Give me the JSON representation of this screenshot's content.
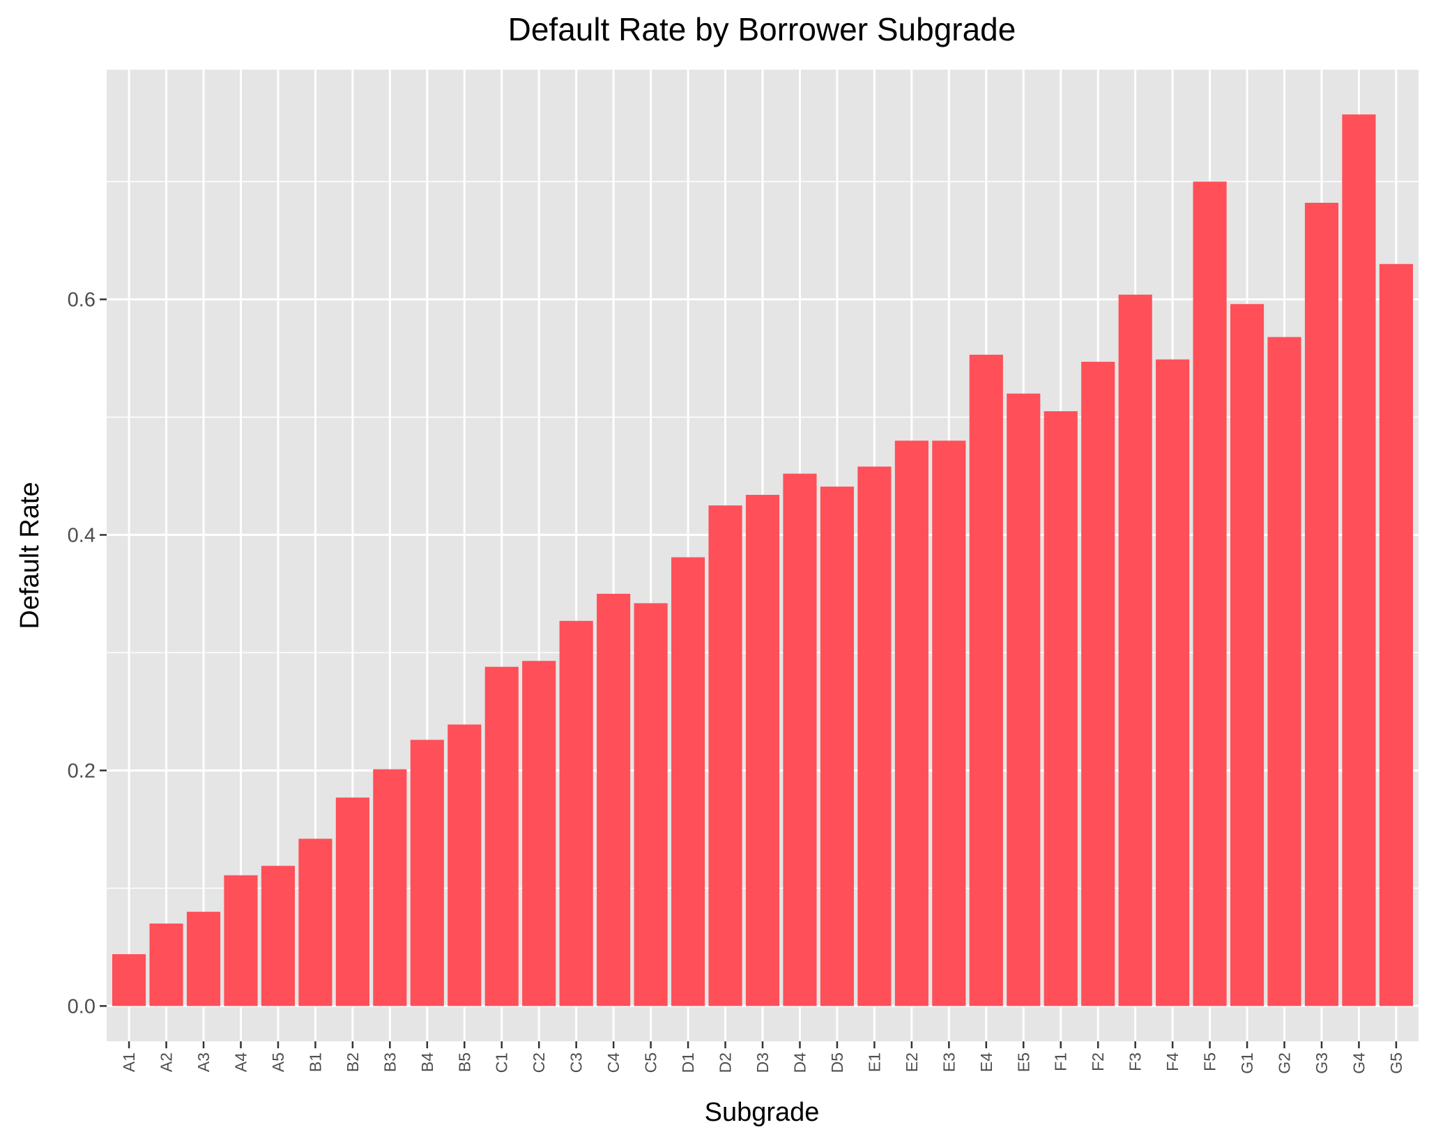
{
  "chart_data": {
    "type": "bar",
    "title": "Default Rate by Borrower Subgrade",
    "xlabel": "Subgrade",
    "ylabel": "Default Rate",
    "categories": [
      "A1",
      "A2",
      "A3",
      "A4",
      "A5",
      "B1",
      "B2",
      "B3",
      "B4",
      "B5",
      "C1",
      "C2",
      "C3",
      "C4",
      "C5",
      "D1",
      "D2",
      "D3",
      "D4",
      "D5",
      "E1",
      "E2",
      "E3",
      "E4",
      "E5",
      "F1",
      "F2",
      "F3",
      "F4",
      "F5",
      "G1",
      "G2",
      "G3",
      "G4",
      "G5"
    ],
    "values": [
      0.044,
      0.07,
      0.08,
      0.111,
      0.119,
      0.142,
      0.177,
      0.201,
      0.226,
      0.239,
      0.288,
      0.293,
      0.327,
      0.35,
      0.342,
      0.381,
      0.425,
      0.434,
      0.452,
      0.441,
      0.458,
      0.48,
      0.48,
      0.553,
      0.52,
      0.505,
      0.547,
      0.604,
      0.549,
      0.7,
      0.596,
      0.568,
      0.682,
      0.757,
      0.63
    ],
    "ylim": [
      -0.03,
      0.795
    ],
    "yticks": [
      0.0,
      0.2,
      0.4,
      0.6
    ],
    "ytick_labels": [
      "0.0",
      "0.2",
      "0.4",
      "0.6"
    ],
    "y_minor_ticks": [
      0.1,
      0.3,
      0.5,
      0.7
    ],
    "grid": true,
    "bar_color": "#FF4F58",
    "panel_color": "#E5E5E5",
    "grid_color": "#FFFFFF"
  }
}
